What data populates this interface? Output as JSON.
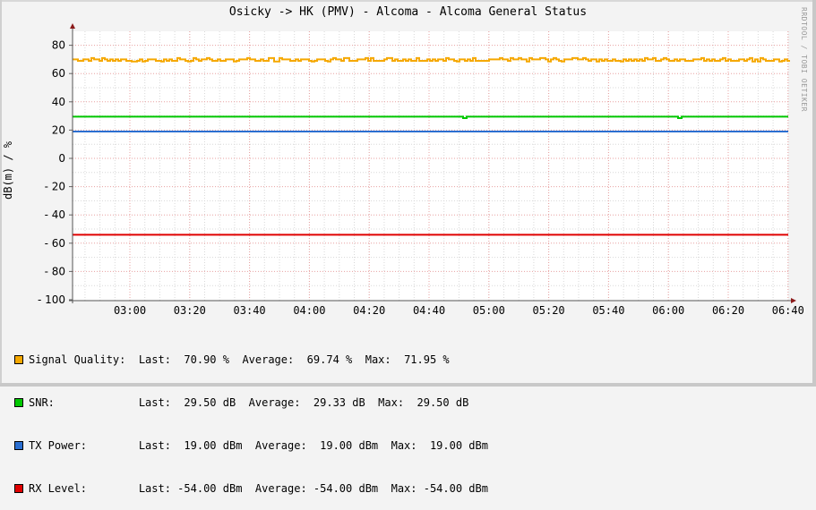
{
  "title": "Osicky -> HK (PMV) - Alcoma - Alcoma General Status",
  "watermark": "RRDTOOL / TOBI OETIKER",
  "chart_data": {
    "type": "line",
    "title": "Osicky -> HK (PMV) - Alcoma - Alcoma General Status",
    "xlabel": "",
    "ylabel": "dB(m) / %",
    "ylim": [
      -100,
      90
    ],
    "grid": true,
    "legend_position": "bottom",
    "y_ticks": [
      "80",
      "60",
      "40",
      "20",
      "0",
      "- 20",
      "- 40",
      "- 60",
      "- 80",
      "- 100"
    ],
    "y_tick_values": [
      80,
      60,
      40,
      20,
      0,
      -20,
      -40,
      -60,
      -80,
      -100
    ],
    "x_ticks": [
      "03:00",
      "03:20",
      "03:40",
      "04:00",
      "04:20",
      "04:40",
      "05:00",
      "05:20",
      "05:40",
      "06:00",
      "06:20",
      "06:40"
    ],
    "series": [
      {
        "name": "Signal Quality",
        "color": "#f5a800",
        "unit": "%",
        "last": "70.90",
        "average": "69.74",
        "max": "71.95",
        "approx_level": 70
      },
      {
        "name": "SNR",
        "color": "#00c800",
        "unit": "dB",
        "last": "29.50",
        "average": "29.33",
        "max": "29.50",
        "approx_level": 29.5
      },
      {
        "name": "TX Power",
        "color": "#2b6fd1",
        "unit": "dBm",
        "last": "19.00",
        "average": "19.00",
        "max": "19.00",
        "approx_level": 19
      },
      {
        "name": "RX Level",
        "color": "#e00000",
        "unit": "dBm",
        "last": "-54.00",
        "average": "-54.00",
        "max": "-54.00",
        "approx_level": -54
      }
    ]
  },
  "legend": [
    {
      "label": "Signal Quality:",
      "last_label": "Last:",
      "last": "  70.90 %  ",
      "avg_label": "Average:",
      "avg": "  69.74 %  ",
      "max_label": "Max:",
      "max": "  71.95 %",
      "color": "#f5a800"
    },
    {
      "label": "SNR:           ",
      "last_label": "Last:",
      "last": "  29.50 dB  ",
      "avg_label": "Average:",
      "avg": "  29.33 dB  ",
      "max_label": "Max:",
      "max": "  29.50 dB",
      "color": "#00c800"
    },
    {
      "label": "TX Power:      ",
      "last_label": "Last:",
      "last": "  19.00 dBm  ",
      "avg_label": "Average:",
      "avg": "  19.00 dBm  ",
      "max_label": "Max:",
      "max": "  19.00 dBm",
      "color": "#2b6fd1"
    },
    {
      "label": "RX Level:      ",
      "last_label": "Last:",
      "last": " -54.00 dBm  ",
      "avg_label": "Average:",
      "avg": " -54.00 dBm  ",
      "max_label": "Max:",
      "max": " -54.00 dBm",
      "color": "#e00000"
    }
  ]
}
